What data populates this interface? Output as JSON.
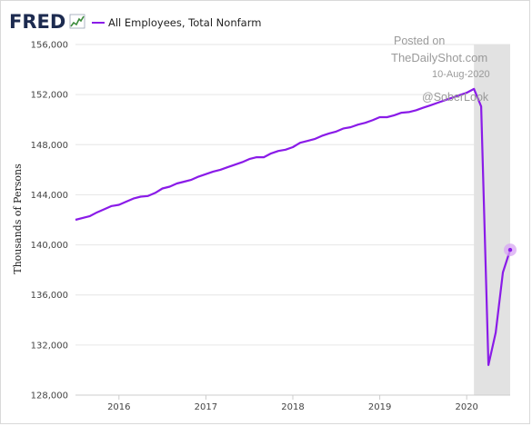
{
  "logo": {
    "text": "FRED"
  },
  "watermark": {
    "line1": "Posted on",
    "line2": "TheDailyShot.com",
    "line3": "10-Aug-2020",
    "line4": "@SoberLook"
  },
  "colors": {
    "series": "#8a1be8",
    "recession": "#e2e2e2",
    "grid": "#e6e6e6",
    "highlight": "#d7a6f3"
  },
  "chart_data": {
    "type": "line",
    "title": "",
    "xlabel": "",
    "ylabel": "Thousands of Persons",
    "ylim": [
      128000,
      156000
    ],
    "xlim": [
      "2015-07",
      "2020-07"
    ],
    "grid": true,
    "legend_position": "top-left",
    "x_ticks": [
      "2016",
      "2017",
      "2018",
      "2019",
      "2020"
    ],
    "y_ticks": [
      "128,000",
      "132,000",
      "136,000",
      "140,000",
      "144,000",
      "148,000",
      "152,000",
      "156,000"
    ],
    "shaded_region": {
      "start": "2020-02",
      "end": "2020-07",
      "label": ""
    },
    "series": [
      {
        "name": "All Employees, Total Nonfarm",
        "x": [
          "2015-07",
          "2015-08",
          "2015-09",
          "2015-10",
          "2015-11",
          "2015-12",
          "2016-01",
          "2016-02",
          "2016-03",
          "2016-04",
          "2016-05",
          "2016-06",
          "2016-07",
          "2016-08",
          "2016-09",
          "2016-10",
          "2016-11",
          "2016-12",
          "2017-01",
          "2017-02",
          "2017-03",
          "2017-04",
          "2017-05",
          "2017-06",
          "2017-07",
          "2017-08",
          "2017-09",
          "2017-10",
          "2017-11",
          "2017-12",
          "2018-01",
          "2018-02",
          "2018-03",
          "2018-04",
          "2018-05",
          "2018-06",
          "2018-07",
          "2018-08",
          "2018-09",
          "2018-10",
          "2018-11",
          "2018-12",
          "2019-01",
          "2019-02",
          "2019-03",
          "2019-04",
          "2019-05",
          "2019-06",
          "2019-07",
          "2019-08",
          "2019-09",
          "2019-10",
          "2019-11",
          "2019-12",
          "2020-01",
          "2020-02",
          "2020-03",
          "2020-04",
          "2020-05",
          "2020-06",
          "2020-07"
        ],
        "values": [
          142000,
          142150,
          142300,
          142600,
          142850,
          143100,
          143200,
          143450,
          143700,
          143850,
          143900,
          144150,
          144500,
          144650,
          144900,
          145050,
          145200,
          145450,
          145650,
          145850,
          146000,
          146200,
          146400,
          146600,
          146850,
          147000,
          147000,
          147300,
          147500,
          147600,
          147800,
          148150,
          148300,
          148450,
          148700,
          148900,
          149050,
          149300,
          149400,
          149600,
          149750,
          149950,
          150200,
          150200,
          150350,
          150550,
          150600,
          150750,
          150950,
          151150,
          151350,
          151550,
          151750,
          151950,
          152150,
          152450,
          151050,
          130400,
          133000,
          137800,
          139600
        ]
      }
    ]
  }
}
